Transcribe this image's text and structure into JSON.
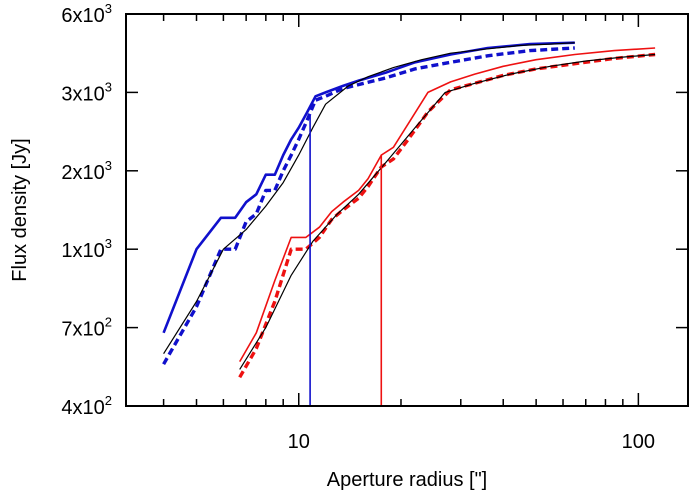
{
  "chart_data": {
    "type": "line",
    "title": "",
    "xlabel": "Aperture radius [\"]",
    "ylabel": "Flux density [Jy]",
    "xscale": "log",
    "xlim": [
      3.1,
      140
    ],
    "ylim": [
      400,
      6000
    ],
    "x_ticks": [
      {
        "value": 10,
        "label": "10"
      },
      {
        "value": 100,
        "label": "100"
      }
    ],
    "y_ticks": [
      {
        "value": 400,
        "mantissa": "4x10",
        "exp": "2"
      },
      {
        "value": 700,
        "mantissa": "7x10",
        "exp": "2"
      },
      {
        "value": 1000,
        "mantissa": "1x10",
        "exp": "3"
      },
      {
        "value": 2000,
        "mantissa": "2x10",
        "exp": "3"
      },
      {
        "value": 3000,
        "mantissa": "3x10",
        "exp": "3"
      },
      {
        "value": 6000,
        "mantissa": "6x10",
        "exp": "3"
      }
    ],
    "grid": false,
    "legend": "none",
    "series": [
      {
        "color": "#1010cc",
        "style": "solid",
        "width": 2.6,
        "x": [
          4.0,
          5.0,
          5.9,
          6.5,
          7.0,
          7.5,
          8.0,
          8.5,
          9.0,
          9.5,
          10.0,
          10.6,
          11.2,
          12.0,
          13.5,
          15.0,
          18.0,
          22.0,
          28.0,
          36.0,
          48.0,
          65.0
        ],
        "y": [
          680,
          1000,
          1400,
          1400,
          1600,
          1700,
          1950,
          1950,
          2200,
          2400,
          2550,
          2750,
          2950,
          3000,
          3250,
          3450,
          3750,
          4150,
          4450,
          4700,
          4850,
          4900
        ]
      },
      {
        "color": "#1010cc",
        "style": "dashed",
        "width": 3.4,
        "x": [
          4.0,
          5.0,
          5.9,
          6.5,
          7.0,
          7.5,
          8.0,
          8.5,
          9.0,
          9.5,
          10.0,
          10.6,
          11.2,
          12.0,
          13.5,
          15.0,
          18.0,
          22.0,
          28.0,
          36.0,
          48.0,
          65.0
        ],
        "y": [
          560,
          780,
          1000,
          1000,
          1350,
          1450,
          1750,
          1750,
          2000,
          2200,
          2400,
          2650,
          2900,
          2950,
          3150,
          3300,
          3550,
          3900,
          4150,
          4400,
          4600,
          4700
        ]
      },
      {
        "color": "#000000",
        "style": "solid",
        "width": 1.2,
        "x": [
          4.0,
          5.0,
          6.0,
          7.0,
          8.0,
          9.0,
          10.0,
          11.0,
          12.0,
          14.0,
          16.0,
          19.0,
          23.0,
          28.0,
          35.0,
          45.0,
          55.0,
          65.0
        ],
        "y": [
          600,
          800,
          1000,
          1250,
          1550,
          1850,
          2200,
          2550,
          2850,
          3250,
          3600,
          3950,
          4250,
          4500,
          4650,
          4800,
          4850,
          4900
        ]
      },
      {
        "color": "#ee1111",
        "style": "solid",
        "width": 1.6,
        "x": [
          6.7,
          7.5,
          8.5,
          9.5,
          10.5,
          11.5,
          12.5,
          13.5,
          15.0,
          16.0,
          17.5,
          19.0,
          21.0,
          24.0,
          28.0,
          33.0,
          40.0,
          50.0,
          65.0,
          85.0,
          112.0
        ],
        "y": [
          570,
          680,
          880,
          1150,
          1150,
          1280,
          1480,
          1600,
          1750,
          1900,
          2200,
          2300,
          2600,
          3000,
          3400,
          3700,
          4000,
          4250,
          4450,
          4600,
          4700
        ]
      },
      {
        "color": "#ee1111",
        "style": "dashed",
        "width": 3.4,
        "x": [
          6.7,
          7.5,
          8.5,
          9.5,
          10.5,
          11.5,
          12.5,
          13.5,
          15.0,
          16.0,
          17.5,
          19.0,
          21.0,
          24.0,
          28.0,
          33.0,
          40.0,
          50.0,
          65.0,
          85.0,
          112.0
        ],
        "y": [
          510,
          620,
          800,
          1000,
          1000,
          1150,
          1380,
          1500,
          1650,
          1800,
          2050,
          2150,
          2400,
          2750,
          3100,
          3350,
          3650,
          3900,
          4100,
          4300,
          4450
        ]
      },
      {
        "color": "#000000",
        "style": "solid",
        "width": 1.2,
        "x": [
          6.7,
          8.0,
          9.5,
          11.0,
          13.0,
          15.0,
          18.0,
          22.0,
          27.0,
          33.0,
          42.0,
          55.0,
          70.0,
          90.0,
          112.0
        ],
        "y": [
          540,
          700,
          900,
          1100,
          1450,
          1700,
          2100,
          2550,
          3000,
          3350,
          3700,
          4000,
          4200,
          4350,
          4450
        ]
      }
    ],
    "vlines": [
      {
        "color": "#1010cc",
        "x": 10.8,
        "y_top": 2700
      },
      {
        "color": "#ee1111",
        "x": 17.5,
        "y_top": 2200
      }
    ]
  }
}
